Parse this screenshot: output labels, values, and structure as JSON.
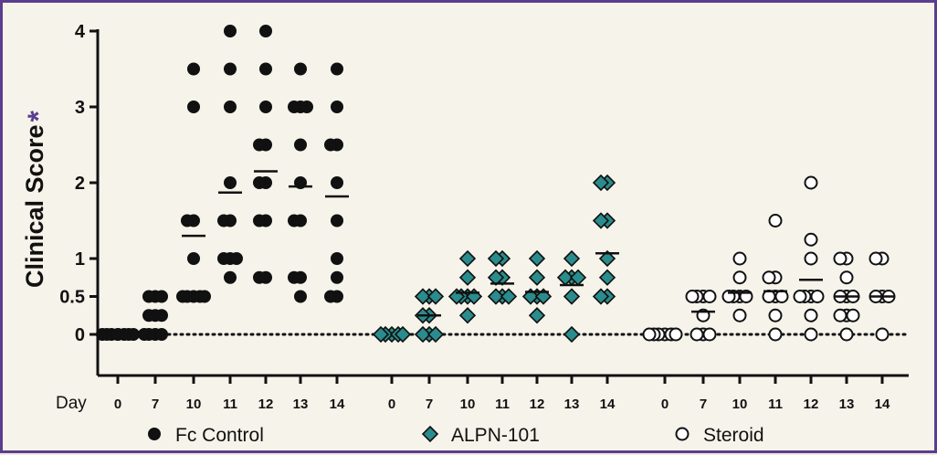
{
  "chart_data": {
    "type": "scatter",
    "ylabel": "Clinical Score",
    "ylabel_marker": "*",
    "yticks": [
      0,
      0.5,
      1,
      2,
      3,
      4
    ],
    "ylim": [
      -0.5,
      4.1
    ],
    "reference_line_y": 0,
    "x_row_label": "Day",
    "days": [
      "0",
      "7",
      "10",
      "11",
      "12",
      "13",
      "14"
    ],
    "groups": [
      {
        "name": "Fc Control",
        "marker": "filled-circle",
        "color": "#111111",
        "points": {
          "0": [
            0,
            0,
            0,
            0,
            0,
            0,
            0,
            0
          ],
          "7": [
            0,
            0,
            0,
            0,
            0.25,
            0.25,
            0.25,
            0.5,
            0.5,
            0.5
          ],
          "10": [
            0.5,
            0.5,
            0.5,
            0.5,
            0.5,
            1,
            1.5,
            1.5,
            3,
            3.5
          ],
          "11": [
            0.75,
            1,
            1,
            1,
            1.5,
            1.5,
            2,
            3,
            3.5,
            4
          ],
          "12": [
            0.75,
            0.75,
            1.5,
            1.5,
            2,
            2,
            2.5,
            2.5,
            3,
            3.5,
            4
          ],
          "13": [
            0.5,
            0.75,
            0.75,
            1.5,
            1.5,
            2,
            2.5,
            3,
            3,
            3,
            3.5
          ],
          "14": [
            0.5,
            0.5,
            0.75,
            1,
            1.5,
            2,
            2.5,
            2.5,
            3,
            3.5
          ]
        },
        "means": [
          0,
          0.27,
          1.3,
          1.87,
          2.15,
          1.95,
          1.82
        ]
      },
      {
        "name": "ALPN-101",
        "marker": "diamond",
        "color": "#2a8c8c",
        "points": {
          "0": [
            0,
            0,
            0,
            0,
            0
          ],
          "7": [
            0,
            0,
            0,
            0.25,
            0.25,
            0.5,
            0.5,
            0.5
          ],
          "10": [
            0.25,
            0.5,
            0.5,
            0.5,
            0.5,
            0.75,
            1
          ],
          "11": [
            0.5,
            0.5,
            0.5,
            0.75,
            0.75,
            1,
            1
          ],
          "12": [
            0.25,
            0.5,
            0.5,
            0.5,
            0.75,
            1
          ],
          "13": [
            0,
            0.5,
            0.75,
            0.75,
            0.75,
            1
          ],
          "14": [
            0.5,
            0.5,
            0.75,
            1,
            1.5,
            1.5,
            2,
            2
          ]
        },
        "means": [
          0,
          0.25,
          0.55,
          0.67,
          0.56,
          0.65,
          1.07
        ]
      },
      {
        "name": "Steroid",
        "marker": "open-circle",
        "color": "#ffffff",
        "points": {
          "0": [
            0,
            0,
            0,
            0,
            0,
            0
          ],
          "7": [
            0,
            0,
            0,
            0.25,
            0.5,
            0.5,
            0.5,
            0.5
          ],
          "10": [
            0.25,
            0.5,
            0.5,
            0.5,
            0.5,
            0.75,
            1
          ],
          "11": [
            0,
            0.25,
            0.5,
            0.5,
            0.5,
            0.75,
            0.75,
            1.5
          ],
          "12": [
            0,
            0.25,
            0.5,
            0.5,
            0.5,
            0.5,
            1,
            1.25,
            2
          ],
          "13": [
            0,
            0.25,
            0.25,
            0.25,
            0.5,
            0.5,
            0.5,
            0.75,
            1,
            1
          ],
          "14": [
            0,
            0.5,
            0.5,
            0.5,
            1,
            1
          ]
        },
        "means": [
          0,
          0.3,
          0.55,
          0.57,
          0.72,
          0.5,
          0.5
        ]
      }
    ],
    "legend_position": "bottom"
  },
  "colors": {
    "frame": "#5b3d8f",
    "asterisk": "#5b3d8f",
    "panel_background": "#f6f3ea"
  }
}
